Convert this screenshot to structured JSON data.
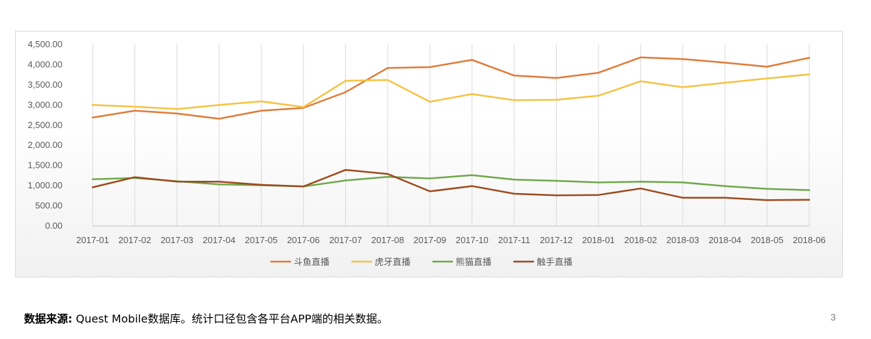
{
  "chart_data": {
    "type": "line",
    "categories": [
      "2017-01",
      "2017-02",
      "2017-03",
      "2017-04",
      "2017-05",
      "2017-06",
      "2017-07",
      "2017-08",
      "2017-09",
      "2017-10",
      "2017-11",
      "2017-12",
      "2018-01",
      "2018-02",
      "2018-03",
      "2018-04",
      "2018-05",
      "2018-06"
    ],
    "series": [
      {
        "name": "斗鱼直播",
        "color": "#E07B39",
        "values": [
          2690,
          2860,
          2790,
          2660,
          2860,
          2930,
          3320,
          3920,
          3940,
          4120,
          3730,
          3670,
          3800,
          4180,
          4140,
          4050,
          3950,
          4170
        ]
      },
      {
        "name": "虎牙直播",
        "color": "#F5C242",
        "values": [
          3000,
          2960,
          2900,
          3000,
          3090,
          2950,
          3600,
          3620,
          3080,
          3270,
          3120,
          3130,
          3230,
          3590,
          3440,
          3550,
          3660,
          3760
        ]
      },
      {
        "name": "熊猫直播",
        "color": "#6FA84A",
        "values": [
          1160,
          1190,
          1110,
          1030,
          1010,
          980,
          1130,
          1220,
          1180,
          1260,
          1150,
          1120,
          1080,
          1100,
          1080,
          990,
          920,
          890
        ]
      },
      {
        "name": "触手直播",
        "color": "#9E4A1E",
        "values": [
          960,
          1210,
          1100,
          1100,
          1020,
          980,
          1390,
          1290,
          860,
          990,
          800,
          760,
          770,
          930,
          700,
          700,
          640,
          650
        ]
      }
    ],
    "ylim": [
      0,
      4500
    ],
    "yticks": [
      0,
      500,
      1000,
      1500,
      2000,
      2500,
      3000,
      3500,
      4000,
      4500
    ],
    "ytick_labels": [
      "0.00",
      "500.00",
      "1,000.00",
      "1,500.00",
      "2,000.00",
      "2,500.00",
      "3,000.00",
      "3,500.00",
      "4,000.00",
      "4,500.00"
    ],
    "grid": "vertical",
    "legend_position": "bottom"
  },
  "source": {
    "label": "数据来源:",
    "text": " Quest Mobile数据库。统计口径包含各平台APP端的相关数据。"
  },
  "page_number": "3"
}
